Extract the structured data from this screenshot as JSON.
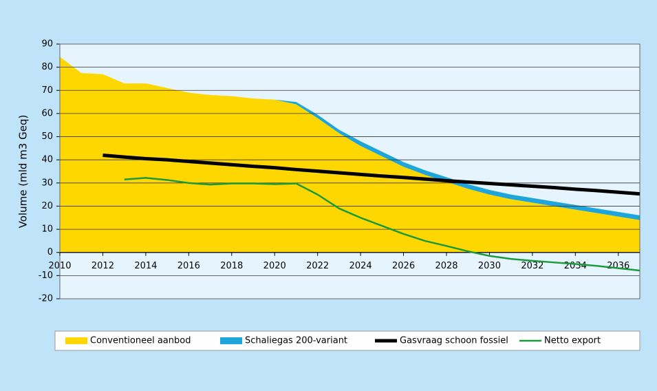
{
  "chart_data": {
    "type": "line",
    "y_label": "Volume (mld m3 Geq)",
    "x": [
      2010,
      2011,
      2012,
      2013,
      2014,
      2015,
      2016,
      2017,
      2018,
      2019,
      2020,
      2021,
      2022,
      2023,
      2024,
      2025,
      2026,
      2027,
      2028,
      2029,
      2030,
      2031,
      2032,
      2033,
      2034,
      2035,
      2036,
      2037
    ],
    "series": [
      {
        "name": "Conventioneel aanbod",
        "type": "stacked_area",
        "color": "#ffd700",
        "values": [
          84.5,
          77.5,
          77,
          73,
          73,
          71,
          69,
          68,
          67.5,
          66.5,
          66,
          64,
          58,
          51.5,
          46,
          41.5,
          37,
          33.5,
          30.5,
          27.5,
          25,
          23,
          21.5,
          20,
          18.5,
          17,
          15.5,
          14
        ]
      },
      {
        "name": "Schaliegas 200-variant",
        "type": "stacked_area",
        "color": "#1ea6dc",
        "values": [
          0,
          0,
          0,
          0,
          0,
          0,
          0,
          0,
          0,
          0,
          0,
          1,
          1.5,
          1.5,
          2,
          2,
          2,
          2,
          2,
          2,
          2,
          2,
          2,
          2,
          2,
          2,
          2,
          2
        ]
      },
      {
        "name": "Gasvraag schoon fossiel",
        "type": "line",
        "color": "#000000",
        "width": 5,
        "values": [
          null,
          null,
          42,
          41.2,
          40.5,
          40,
          39.3,
          38.6,
          37.9,
          37.2,
          36.6,
          35.8,
          35.1,
          34.4,
          33.7,
          33,
          32.4,
          31.7,
          31,
          30.4,
          29.8,
          29.2,
          28.6,
          28,
          27.3,
          26.7,
          26,
          25.3
        ]
      },
      {
        "name": "Netto export",
        "type": "line",
        "color": "#1a9a3c",
        "width": 2.5,
        "values": [
          null,
          null,
          null,
          31.5,
          32.2,
          31.3,
          30,
          29.3,
          29.8,
          29.8,
          29.5,
          29.8,
          25,
          19,
          15,
          11.5,
          8,
          5,
          2.8,
          0.5,
          -1.5,
          -2.8,
          -3.6,
          -4.3,
          -5,
          -5.8,
          -6.8,
          -7.8
        ]
      }
    ],
    "xlim": [
      2010,
      2037
    ],
    "xticks": [
      2010,
      2012,
      2014,
      2016,
      2018,
      2020,
      2022,
      2024,
      2026,
      2028,
      2030,
      2032,
      2034,
      2036
    ],
    "ylim": [
      -20,
      90
    ],
    "yticks": [
      -20,
      -10,
      0,
      10,
      20,
      30,
      40,
      50,
      60,
      70,
      80,
      90
    ],
    "grid": true,
    "legend": "bottom"
  }
}
